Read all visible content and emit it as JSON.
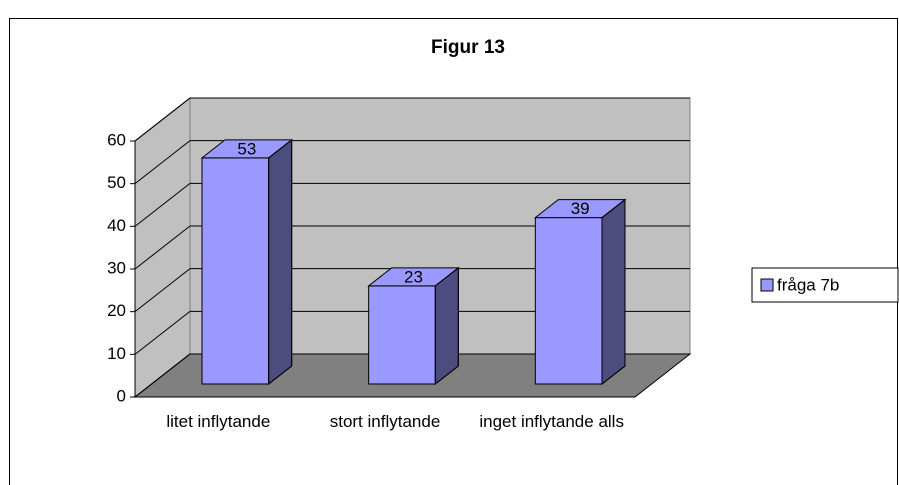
{
  "chart_data": {
    "type": "bar3d",
    "title": "Figur 13",
    "categories": [
      "litet inflytande",
      "stort inflytande",
      "inget inflytande alls"
    ],
    "series": [
      {
        "name": "fråga 7b",
        "color": "#9999ff",
        "values": [
          53,
          23,
          39
        ]
      }
    ],
    "ylim": [
      0,
      60
    ],
    "yticks": [
      0,
      10,
      20,
      30,
      40,
      50,
      60
    ],
    "grid": true,
    "legend": "right"
  }
}
